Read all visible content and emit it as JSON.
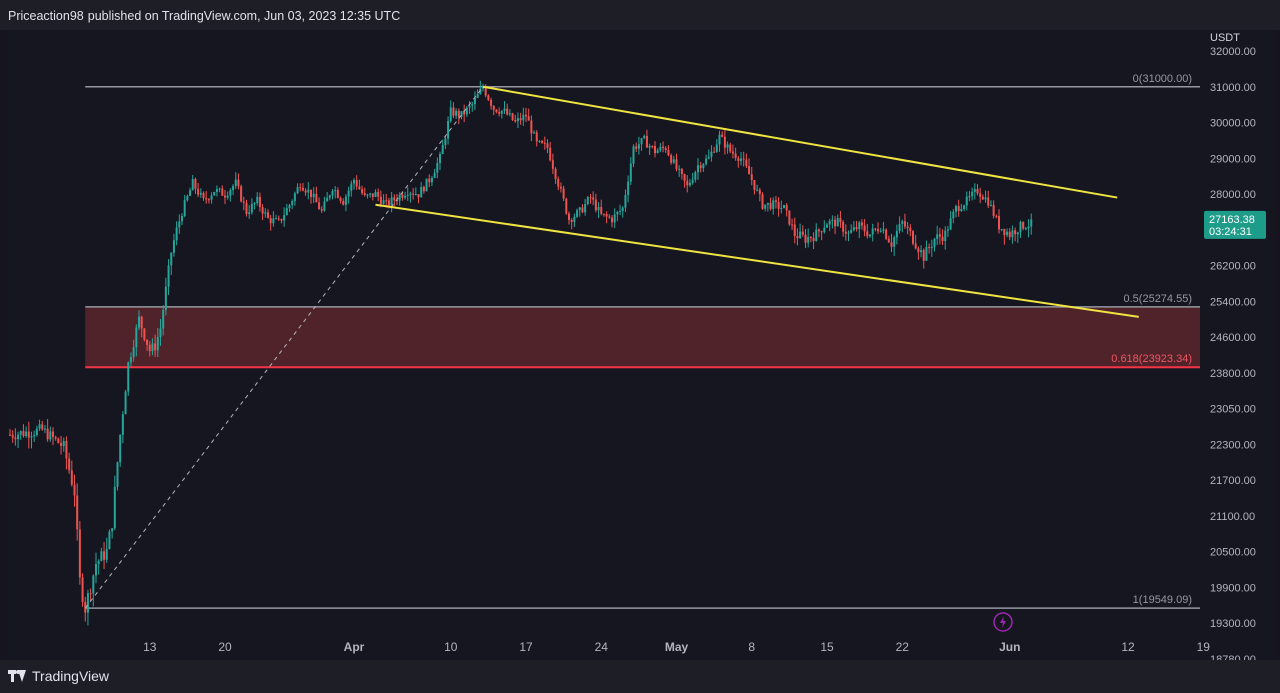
{
  "header": {
    "author": "Priceaction98",
    "published_text": "published on TradingView.com, Jun 03, 2023 12:35 UTC"
  },
  "footer": {
    "brand": "TradingView"
  },
  "colors": {
    "up": "#26a69a",
    "down": "#ef5350",
    "channel": "#f0e442",
    "fib_line": "#9598a1",
    "fib_red": "#f23645",
    "zone_fill": "#5a262d",
    "price_badge": "#1e9c8a",
    "lightning": "#9c27b0"
  },
  "icons": {
    "lightning": "lightning-icon",
    "logo": "tradingview-logo-icon"
  },
  "chart_data": {
    "type": "candlestick",
    "symbol_currency": "USDT",
    "y_ticks": [
      32000,
      31000,
      30000,
      29000,
      28000,
      27000,
      26200,
      25400,
      24600,
      23800,
      23050,
      22300,
      21700,
      21100,
      20500,
      19900,
      19300,
      18780
    ],
    "y_tick_labels": [
      "32000.00",
      "31000.00",
      "30000.00",
      "29000.00",
      "28000.00",
      "27000.00",
      "26200.00",
      "25400.00",
      "24600.00",
      "23800.00",
      "23050.00",
      "22300.00",
      "21700.00",
      "21100.00",
      "20500.00",
      "19900.00",
      "19300.00",
      "18780.00"
    ],
    "x_ticks": [
      {
        "label": "13",
        "day": 13,
        "bold": false
      },
      {
        "label": "20",
        "day": 20,
        "bold": false
      },
      {
        "label": "Apr",
        "day": 32,
        "bold": true
      },
      {
        "label": "10",
        "day": 41,
        "bold": false
      },
      {
        "label": "17",
        "day": 48,
        "bold": false
      },
      {
        "label": "24",
        "day": 55,
        "bold": false
      },
      {
        "label": "May",
        "day": 62,
        "bold": true
      },
      {
        "label": "8",
        "day": 69,
        "bold": false
      },
      {
        "label": "15",
        "day": 76,
        "bold": false
      },
      {
        "label": "22",
        "day": 83,
        "bold": false
      },
      {
        "label": "Jun",
        "day": 93,
        "bold": true
      },
      {
        "label": "12",
        "day": 104,
        "bold": false
      },
      {
        "label": "19",
        "day": 111,
        "bold": false
      }
    ],
    "price_path": [
      [
        0,
        22500
      ],
      [
        3,
        22600
      ],
      [
        5,
        22250
      ],
      [
        6,
        21500
      ],
      [
        6.5,
        20000
      ],
      [
        7,
        19549
      ],
      [
        8,
        20300
      ],
      [
        9,
        20500
      ],
      [
        9.5,
        21000
      ],
      [
        10,
        22000
      ],
      [
        11,
        24000
      ],
      [
        12,
        25000
      ],
      [
        13,
        24300
      ],
      [
        13.5,
        24400
      ],
      [
        14,
        24800
      ],
      [
        15,
        26500
      ],
      [
        16,
        27500
      ],
      [
        17,
        28300
      ],
      [
        18,
        27800
      ],
      [
        19,
        28100
      ],
      [
        20,
        28000
      ],
      [
        21,
        28300
      ],
      [
        22,
        27500
      ],
      [
        23,
        27800
      ],
      [
        24,
        27300
      ],
      [
        25,
        27200
      ],
      [
        26,
        27700
      ],
      [
        27,
        28300
      ],
      [
        28,
        28000
      ],
      [
        29,
        27500
      ],
      [
        30,
        28200
      ],
      [
        31,
        27800
      ],
      [
        32,
        28400
      ],
      [
        33,
        27900
      ],
      [
        34,
        28000
      ],
      [
        35,
        27700
      ],
      [
        36,
        27900
      ],
      [
        37,
        28100
      ],
      [
        38,
        28000
      ],
      [
        39,
        28400
      ],
      [
        40,
        29000
      ],
      [
        41,
        30300
      ],
      [
        42,
        30200
      ],
      [
        43,
        30500
      ],
      [
        44,
        31000
      ],
      [
        45,
        30400
      ],
      [
        46,
        30300
      ],
      [
        47,
        30000
      ],
      [
        48,
        30200
      ],
      [
        49,
        29400
      ],
      [
        50,
        29300
      ],
      [
        51,
        28300
      ],
      [
        52,
        27300
      ],
      [
        53,
        27500
      ],
      [
        54,
        27900
      ],
      [
        55,
        27400
      ],
      [
        56,
        27300
      ],
      [
        57,
        27600
      ],
      [
        58,
        29300
      ],
      [
        59,
        29500
      ],
      [
        60,
        29200
      ],
      [
        61,
        29300
      ],
      [
        62,
        28700
      ],
      [
        63,
        28200
      ],
      [
        64,
        28800
      ],
      [
        65,
        29000
      ],
      [
        66,
        29600
      ],
      [
        67,
        29200
      ],
      [
        68,
        29000
      ],
      [
        69,
        28400
      ],
      [
        70,
        27700
      ],
      [
        71,
        27700
      ],
      [
        72,
        27600
      ],
      [
        73,
        26900
      ],
      [
        74,
        26800
      ],
      [
        75,
        26900
      ],
      [
        76,
        27200
      ],
      [
        77,
        27200
      ],
      [
        78,
        26900
      ],
      [
        79,
        27100
      ],
      [
        80,
        26900
      ],
      [
        81,
        27100
      ],
      [
        82,
        26700
      ],
      [
        83,
        27200
      ],
      [
        84,
        26800
      ],
      [
        85,
        26400
      ],
      [
        86,
        26800
      ],
      [
        87,
        26900
      ],
      [
        88,
        27600
      ],
      [
        89,
        27800
      ],
      [
        90,
        28100
      ],
      [
        91,
        27800
      ],
      [
        92,
        27100
      ],
      [
        93,
        26900
      ],
      [
        94,
        27100
      ],
      [
        95,
        27163
      ]
    ],
    "fib_levels": [
      {
        "label": "0(31000.00)",
        "value": 31000,
        "color_key": "fib_line"
      },
      {
        "label": "0.5(25274.55)",
        "value": 25274.55,
        "color_key": "fib_line"
      },
      {
        "label": "0.618(23923.34)",
        "value": 23923.34,
        "color_key": "fib_red"
      },
      {
        "label": "1(19549.09)",
        "value": 19549.09,
        "color_key": "fib_line"
      }
    ],
    "fib_x_range": [
      7,
      115
    ],
    "fib_anchor": {
      "from": [
        7,
        19549
      ],
      "to": [
        44,
        31000
      ]
    },
    "channel_upper": {
      "from": [
        44,
        31000
      ],
      "to": [
        103,
        27900
      ]
    },
    "channel_lower": {
      "from": [
        34,
        27700
      ],
      "to": [
        105,
        25050
      ]
    },
    "last_price": "27163.38",
    "countdown": "03:24:31"
  }
}
